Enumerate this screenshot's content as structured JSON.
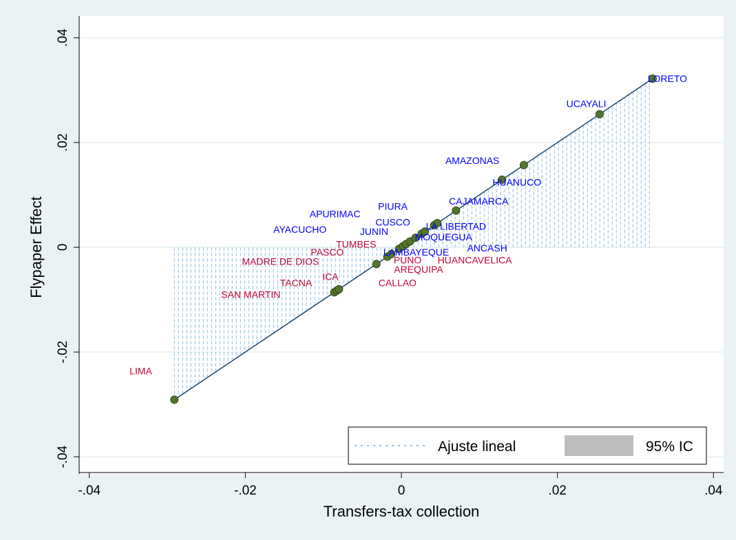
{
  "colors": {
    "outer_bg": "#eaf2f3",
    "plot_bg": "#ffffff",
    "grid": "#eaf2f3",
    "fit_line": "#1a476f",
    "point_fill": "#55752f",
    "point_stroke": "#2e4a18",
    "ci_hatch": "#90c0e0",
    "ci_fill": "#bebebe",
    "label_positive": "#0000ff",
    "label_negative": "#c10534"
  },
  "chart_data": {
    "type": "scatter",
    "xlabel": "Transfers-tax collection",
    "ylabel": "Flypaper Effect",
    "xlim": [
      -0.04,
      0.04
    ],
    "ylim": [
      -0.04,
      0.04
    ],
    "x_ticks": [
      -0.04,
      -0.02,
      0,
      0.02,
      0.04
    ],
    "x_tick_labels": [
      "-.04",
      "-.02",
      "0",
      ".02",
      ".04"
    ],
    "y_ticks": [
      -0.04,
      -0.02,
      0,
      0.02,
      0.04
    ],
    "y_tick_labels": [
      "-.04",
      "-.02",
      "0",
      ".02",
      ".04"
    ],
    "grid": true,
    "legend_position": "bottom-right",
    "legend": [
      {
        "label": "Ajuste lineal",
        "style": "dotted-line"
      },
      {
        "label": "95% IC",
        "style": "grey-box"
      }
    ],
    "fit_line": {
      "x": [
        -0.0291,
        0.0322
      ],
      "y": [
        -0.0291,
        0.0322
      ]
    },
    "points": [
      {
        "x": -0.0291,
        "y": -0.0291
      },
      {
        "x": -0.0086,
        "y": -0.0086
      },
      {
        "x": -0.0083,
        "y": -0.0083
      },
      {
        "x": -0.008,
        "y": -0.008
      },
      {
        "x": -0.0032,
        "y": -0.0032
      },
      {
        "x": -0.0018,
        "y": -0.0018
      },
      {
        "x": -0.0013,
        "y": -0.0013
      },
      {
        "x": -0.0003,
        "y": -0.0003
      },
      {
        "x": 0.0002,
        "y": 0.0002
      },
      {
        "x": 0.0006,
        "y": 0.0006
      },
      {
        "x": 0.0011,
        "y": 0.0011
      },
      {
        "x": 0.0018,
        "y": 0.0018
      },
      {
        "x": 0.0026,
        "y": 0.0026
      },
      {
        "x": 0.003,
        "y": 0.003
      },
      {
        "x": 0.0042,
        "y": 0.0042
      },
      {
        "x": 0.0046,
        "y": 0.0046
      },
      {
        "x": 0.007,
        "y": 0.007
      },
      {
        "x": 0.0129,
        "y": 0.0129
      },
      {
        "x": 0.0157,
        "y": 0.0157
      },
      {
        "x": 0.0254,
        "y": 0.0254
      },
      {
        "x": 0.0322,
        "y": 0.0322
      }
    ],
    "labels": [
      {
        "text": "LORETO",
        "x": 0.0341,
        "y": 0.0322,
        "group": "positive"
      },
      {
        "text": "UCAYALI",
        "x": 0.0237,
        "y": 0.0274,
        "group": "positive"
      },
      {
        "text": "AMAZONAS",
        "x": 0.0091,
        "y": 0.0166,
        "group": "positive"
      },
      {
        "text": "HUANUCO",
        "x": 0.0148,
        "y": 0.0124,
        "group": "positive"
      },
      {
        "text": "CAJAMARCA",
        "x": 0.0099,
        "y": 0.0088,
        "group": "positive"
      },
      {
        "text": "PIURA",
        "x": -0.0011,
        "y": 0.0078,
        "group": "positive"
      },
      {
        "text": "APURIMAC",
        "x": -0.0085,
        "y": 0.0064,
        "group": "positive"
      },
      {
        "text": "CUSCO",
        "x": -0.0011,
        "y": 0.0048,
        "group": "positive"
      },
      {
        "text": "LA LIBERTAD",
        "x": 0.007,
        "y": 0.004,
        "group": "positive"
      },
      {
        "text": "AYACUCHO",
        "x": -0.013,
        "y": 0.0034,
        "group": "positive"
      },
      {
        "text": "JUNIN",
        "x": -0.0035,
        "y": 0.003,
        "group": "positive"
      },
      {
        "text": "MOQUEGUA",
        "x": 0.0054,
        "y": 0.002,
        "group": "positive"
      },
      {
        "text": "ANCASH",
        "x": 0.011,
        "y": -0.0001,
        "group": "positive"
      },
      {
        "text": "LAMBAYEQUE",
        "x": 0.0019,
        "y": -0.0009,
        "group": "positive"
      },
      {
        "text": "TUMBES",
        "x": -0.0058,
        "y": 0.0006,
        "group": "negative"
      },
      {
        "text": "PASCO",
        "x": -0.0095,
        "y": -0.0009,
        "group": "negative"
      },
      {
        "text": "MADRE DE DIOS",
        "x": -0.0155,
        "y": -0.0027,
        "group": "negative"
      },
      {
        "text": "PUNO",
        "x": 0.0008,
        "y": -0.0024,
        "group": "negative"
      },
      {
        "text": "HUANCAVELICA",
        "x": 0.0094,
        "y": -0.0024,
        "group": "negative"
      },
      {
        "text": "AREQUIPA",
        "x": 0.0022,
        "y": -0.0042,
        "group": "negative"
      },
      {
        "text": "ICA",
        "x": -0.0091,
        "y": -0.0056,
        "group": "negative"
      },
      {
        "text": "TACNA",
        "x": -0.0135,
        "y": -0.0068,
        "group": "negative"
      },
      {
        "text": "CALLAO",
        "x": -0.0005,
        "y": -0.0068,
        "group": "negative"
      },
      {
        "text": "SAN MARTIN",
        "x": -0.0193,
        "y": -0.009,
        "group": "negative"
      },
      {
        "text": "LIMA",
        "x": -0.0334,
        "y": -0.0236,
        "group": "negative"
      }
    ]
  }
}
